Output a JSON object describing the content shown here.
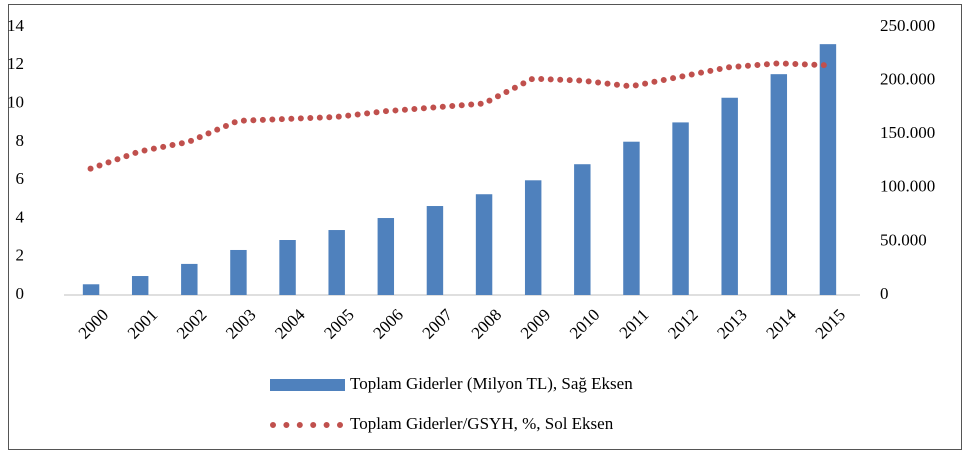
{
  "chart_data": {
    "type": "bar-line",
    "categories": [
      "2000",
      "2001",
      "2002",
      "2003",
      "2004",
      "2005",
      "2006",
      "2007",
      "2008",
      "2009",
      "2010",
      "2011",
      "2012",
      "2013",
      "2014",
      "2015"
    ],
    "series": [
      {
        "name": "Toplam Giderler (Milyon TL), Sağ Eksen",
        "type": "bar",
        "axis": "y2",
        "color": "#4f81bd",
        "values": [
          10000,
          17700,
          29000,
          42000,
          51300,
          60600,
          71800,
          83000,
          94000,
          107000,
          122000,
          143000,
          161000,
          184000,
          206000,
          234000
        ]
      },
      {
        "name": "Toplam Giderler/GSYH, %, Sol Eksen",
        "type": "line",
        "axis": "y",
        "color": "#c0504d",
        "values": [
          6.6,
          7.5,
          8.0,
          9.1,
          9.2,
          9.3,
          9.6,
          9.8,
          10.0,
          11.3,
          11.2,
          10.9,
          11.4,
          11.9,
          12.1,
          12.0
        ]
      }
    ],
    "ylim": [
      0,
      14
    ],
    "yticks": [
      0,
      2,
      4,
      6,
      8,
      10,
      12,
      14
    ],
    "y2lim": [
      0,
      250000
    ],
    "y2ticks": [
      0,
      {
        "value": 50000,
        "label": "50.000"
      },
      {
        "value": 100000,
        "label": "100.000"
      },
      {
        "value": 150000,
        "label": "150.000"
      },
      {
        "value": 200000,
        "label": "200.000"
      },
      {
        "value": 250000,
        "label": "250.000"
      }
    ],
    "grid": false,
    "legend": "bottom"
  }
}
